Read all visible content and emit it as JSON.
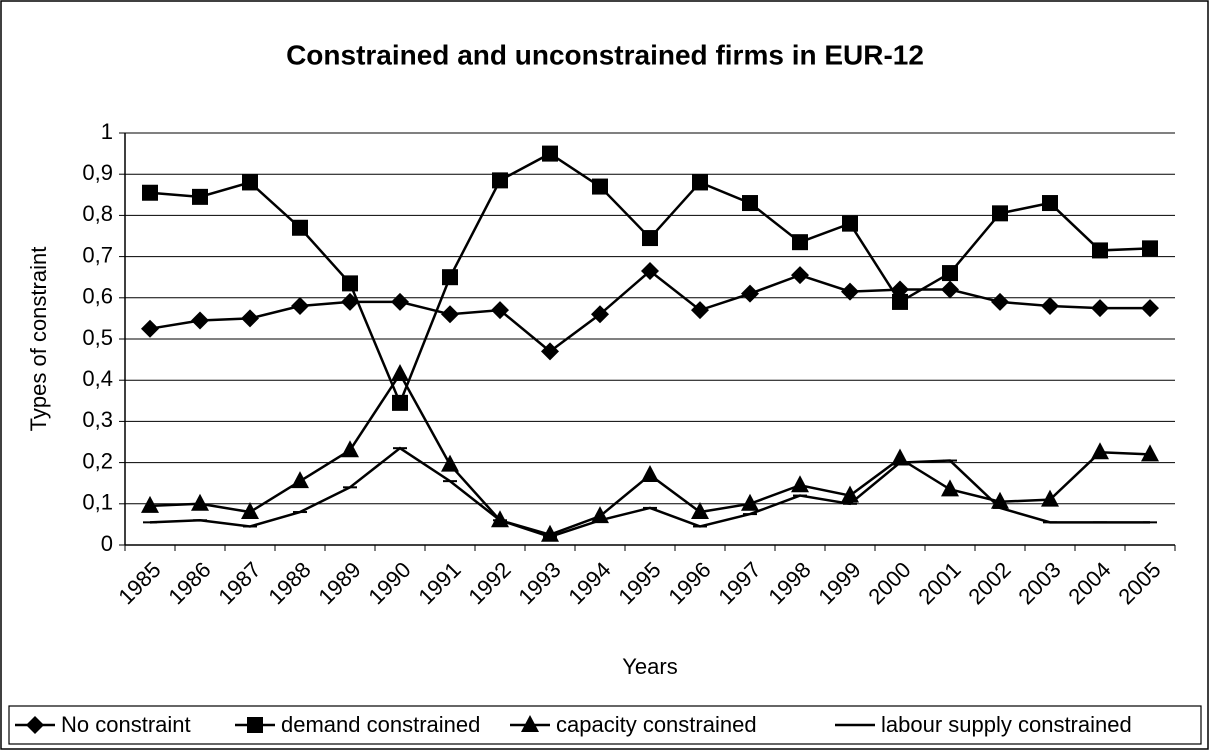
{
  "chart_data": {
    "type": "line",
    "title": "Constrained and unconstrained firms in EUR-12",
    "x_label": "Years",
    "y_label": "Types of constraint",
    "categories": [
      "1985",
      "1986",
      "1987",
      "1988",
      "1989",
      "1990",
      "1991",
      "1992",
      "1993",
      "1994",
      "1995",
      "1996",
      "1997",
      "1998",
      "1999",
      "2000",
      "2001",
      "2002",
      "2003",
      "2004",
      "2005"
    ],
    "ylim": [
      0,
      1
    ],
    "yticks": [
      0,
      {
        "value": 0.1,
        "label": "0,1"
      },
      {
        "value": 0.2,
        "label": "0,2"
      },
      {
        "value": 0.3,
        "label": "0,3"
      },
      {
        "value": 0.4,
        "label": "0,4"
      },
      {
        "value": 0.5,
        "label": "0,5"
      },
      {
        "value": 0.6,
        "label": "0,6"
      },
      {
        "value": 0.7,
        "label": "0,7"
      },
      {
        "value": 0.8,
        "label": "0,8"
      },
      {
        "value": 0.9,
        "label": "0,9"
      },
      1
    ],
    "grid": true,
    "legend": "bottom",
    "series": [
      {
        "name": "No constraint",
        "color": "#000000",
        "marker": "diamond",
        "values": [
          0.525,
          0.545,
          0.55,
          0.58,
          0.59,
          0.59,
          0.56,
          0.57,
          0.47,
          0.56,
          0.665,
          0.57,
          0.61,
          0.655,
          0.615,
          0.62,
          0.62,
          0.59,
          0.58,
          0.575,
          0.575
        ]
      },
      {
        "name": "demand constrained",
        "color": "#000000",
        "marker": "square",
        "values": [
          0.855,
          0.845,
          0.88,
          0.77,
          0.635,
          0.345,
          0.65,
          0.885,
          0.95,
          0.87,
          0.745,
          0.88,
          0.83,
          0.735,
          0.78,
          0.59,
          0.66,
          0.805,
          0.83,
          0.715,
          0.72
        ]
      },
      {
        "name": "capacity constrained",
        "color": "#000000",
        "marker": "triangle",
        "values": [
          0.095,
          0.1,
          0.08,
          0.155,
          0.23,
          0.415,
          0.195,
          0.06,
          0.025,
          0.07,
          0.17,
          0.08,
          0.1,
          0.145,
          0.12,
          0.21,
          0.135,
          0.105,
          0.11,
          0.225,
          0.22
        ]
      },
      {
        "name": "labour supply constrained",
        "color": "#000000",
        "marker": "dash",
        "values": [
          0.055,
          0.06,
          0.045,
          0.08,
          0.14,
          0.235,
          0.155,
          0.06,
          0.02,
          0.06,
          0.09,
          0.045,
          0.075,
          0.12,
          0.1,
          0.2,
          0.205,
          0.09,
          0.055,
          0.055,
          0.055
        ]
      }
    ]
  }
}
